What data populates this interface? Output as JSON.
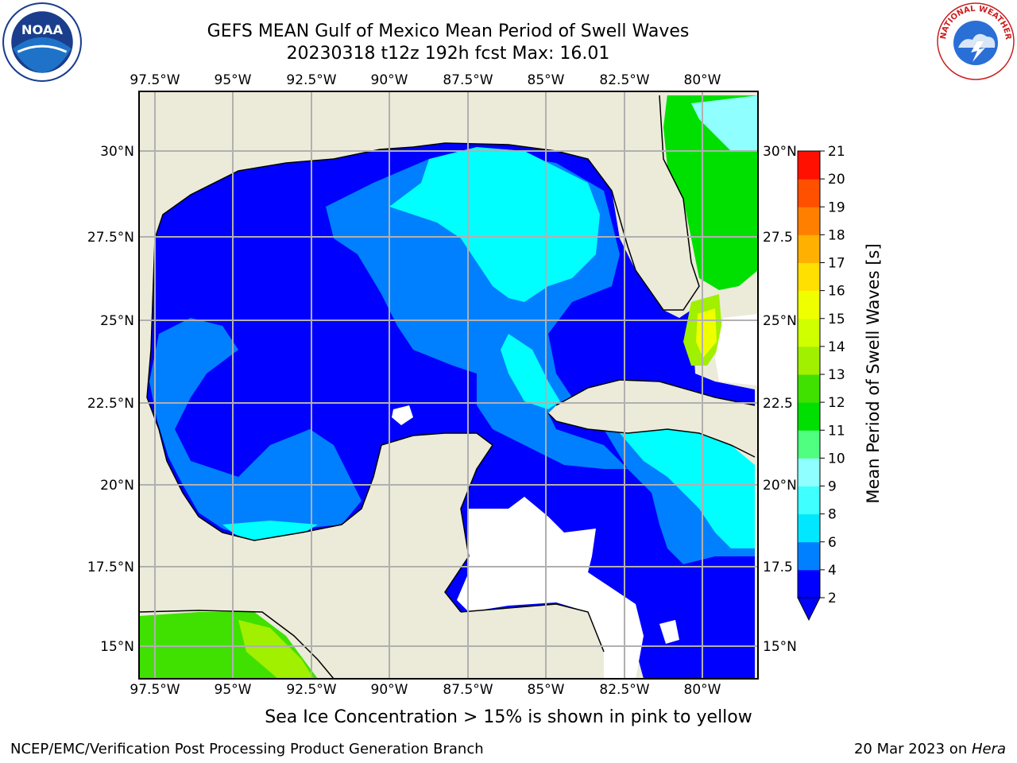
{
  "title": {
    "line1": "GEFS MEAN Gulf of Mexico Mean Period of Swell Waves",
    "line2": "20230318 t12z 192h fcst   Max: 16.01"
  },
  "logos": {
    "left": "noaa-logo",
    "left_text": "NOAA",
    "right": "nws-logo",
    "right_text": "NATIONAL WEATHER SERVICE"
  },
  "map": {
    "lon_labels": [
      "97.5°W",
      "95°W",
      "92.5°W",
      "90°W",
      "87.5°W",
      "85°W",
      "82.5°W",
      "80°W"
    ],
    "lat_labels_left": [
      "30°N",
      "27.5°N",
      "25°N",
      "22.5°N",
      "20°N",
      "17.5°N",
      "15°N"
    ],
    "lat_labels_right": [
      "30°N",
      "27.5",
      "25°N",
      "22.5",
      "20°N",
      "17.5",
      "15°N"
    ],
    "land_color": "#ecebda",
    "grid_color": "#b0b0b0"
  },
  "colorbar": {
    "label": "Mean Period of Swell Waves [s]",
    "ticks": [
      "2",
      "4",
      "6",
      "8",
      "9",
      "10",
      "11",
      "12",
      "13",
      "14",
      "15",
      "16",
      "17",
      "18",
      "19",
      "20",
      "21"
    ],
    "colors": [
      "#0000ff",
      "#0080ff",
      "#00e8ff",
      "#40ffff",
      "#90ffff",
      "#50ff80",
      "#00e000",
      "#40e000",
      "#a0f000",
      "#d0ff00",
      "#f0ff00",
      "#ffe000",
      "#ffb000",
      "#ff8000",
      "#ff5000",
      "#ff1000"
    ],
    "extend": "min"
  },
  "ice_note": "Sea Ice Concentration > 15% is shown in pink to yellow",
  "footer": {
    "left": "NCEP/EMC/Verification Post Processing Product Generation Branch",
    "date": "20 Mar 2023 on ",
    "host": "Hera"
  }
}
